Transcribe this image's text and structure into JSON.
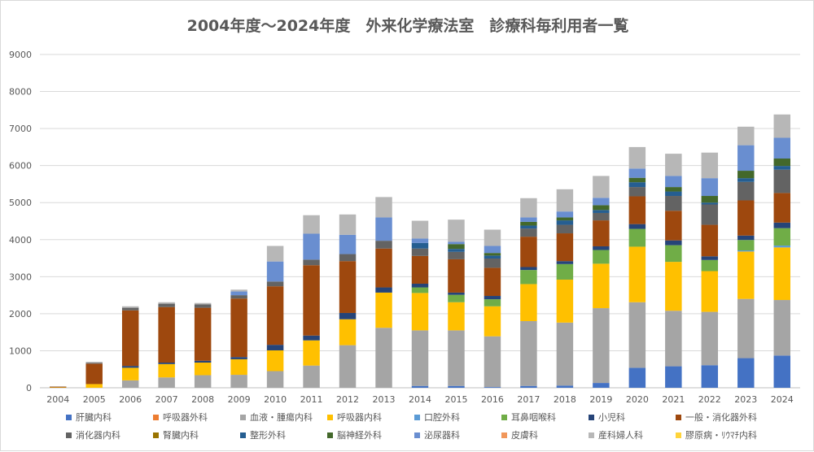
{
  "chart_data": {
    "type": "bar",
    "stacked": true,
    "title": "2004年度～2024年度　外来化学療法室　診療科毎利用者一覧",
    "xlabel": "",
    "ylabel": "",
    "ylim": [
      0,
      9000
    ],
    "yticks": [
      0,
      1000,
      2000,
      3000,
      4000,
      5000,
      6000,
      7000,
      8000,
      9000
    ],
    "grid": true,
    "legend_position": "bottom",
    "categories": [
      "2004",
      "2005",
      "2006",
      "2007",
      "2008",
      "2009",
      "2010",
      "2011",
      "2012",
      "2013",
      "2014",
      "2015",
      "2016",
      "2017",
      "2018",
      "2019",
      "2020",
      "2021",
      "2022",
      "2023",
      "2024"
    ],
    "series": [
      {
        "name": "肝臓内科",
        "color": "#4472c4",
        "values": [
          0,
          0,
          0,
          0,
          0,
          0,
          0,
          0,
          0,
          0,
          50,
          50,
          20,
          50,
          60,
          130,
          540,
          580,
          610,
          800,
          870
        ]
      },
      {
        "name": "呼吸器外科",
        "color": "#ed7d31",
        "values": [
          0,
          0,
          0,
          0,
          0,
          0,
          0,
          0,
          0,
          0,
          0,
          0,
          0,
          0,
          0,
          0,
          0,
          0,
          0,
          0,
          0
        ]
      },
      {
        "name": "血液・腫瘍内科",
        "color": "#a5a5a5",
        "values": [
          0,
          0,
          200,
          280,
          340,
          350,
          450,
          600,
          1150,
          1620,
          1500,
          1500,
          1370,
          1750,
          1700,
          2020,
          1770,
          1500,
          1440,
          1600,
          1500
        ]
      },
      {
        "name": "呼吸器内科",
        "color": "#ffc000",
        "values": [
          10,
          100,
          340,
          360,
          340,
          420,
          560,
          680,
          700,
          950,
          1010,
          760,
          810,
          1000,
          1160,
          1200,
          1500,
          1320,
          1100,
          1280,
          1420
        ]
      },
      {
        "name": "口腔外科",
        "color": "#5b9bd5",
        "values": [
          0,
          0,
          0,
          0,
          0,
          0,
          0,
          0,
          0,
          0,
          0,
          0,
          0,
          0,
          0,
          0,
          0,
          0,
          0,
          30,
          50
        ]
      },
      {
        "name": "耳鼻咽喉科",
        "color": "#70ad47",
        "values": [
          0,
          0,
          0,
          0,
          0,
          0,
          0,
          0,
          0,
          0,
          150,
          200,
          190,
          380,
          420,
          370,
          480,
          450,
          300,
          280,
          470
        ]
      },
      {
        "name": "小児科",
        "color": "#264478",
        "values": [
          0,
          0,
          50,
          40,
          50,
          60,
          150,
          130,
          170,
          140,
          100,
          60,
          90,
          80,
          80,
          100,
          130,
          130,
          100,
          120,
          150
        ]
      },
      {
        "name": "一般・消化器外科",
        "color": "#9e480e",
        "values": [
          20,
          550,
          1500,
          1500,
          1430,
          1580,
          1580,
          1900,
          1400,
          1050,
          750,
          900,
          760,
          820,
          750,
          700,
          750,
          800,
          850,
          950,
          800
        ]
      },
      {
        "name": "消化器内科",
        "color": "#636363",
        "values": [
          0,
          20,
          70,
          90,
          90,
          90,
          130,
          150,
          190,
          210,
          200,
          200,
          250,
          220,
          230,
          200,
          250,
          400,
          550,
          500,
          630
        ]
      },
      {
        "name": "腎臓内科",
        "color": "#997300",
        "values": [
          0,
          0,
          0,
          0,
          0,
          0,
          0,
          0,
          0,
          0,
          0,
          0,
          0,
          0,
          0,
          0,
          0,
          0,
          0,
          0,
          0
        ]
      },
      {
        "name": "整形外科",
        "color": "#255e91",
        "values": [
          0,
          0,
          0,
          0,
          0,
          0,
          0,
          0,
          0,
          0,
          150,
          80,
          80,
          80,
          120,
          80,
          130,
          120,
          50,
          100,
          100
        ]
      },
      {
        "name": "脳神経外科",
        "color": "#43682b",
        "values": [
          0,
          0,
          0,
          0,
          0,
          0,
          0,
          0,
          0,
          0,
          0,
          130,
          70,
          100,
          80,
          130,
          120,
          120,
          180,
          200,
          200
        ]
      },
      {
        "name": "泌尿器科",
        "color": "#698ed0",
        "values": [
          0,
          0,
          0,
          0,
          0,
          100,
          540,
          700,
          520,
          630,
          120,
          60,
          190,
          120,
          160,
          200,
          250,
          300,
          480,
          690,
          560
        ]
      },
      {
        "name": "皮膚科",
        "color": "#f1975a",
        "values": [
          0,
          0,
          0,
          0,
          0,
          0,
          0,
          0,
          0,
          0,
          0,
          0,
          0,
          0,
          0,
          0,
          0,
          0,
          0,
          0,
          0
        ]
      },
      {
        "name": "産科婦人科",
        "color": "#b7b7b7",
        "values": [
          10,
          30,
          40,
          40,
          40,
          50,
          420,
          500,
          550,
          550,
          480,
          600,
          440,
          520,
          600,
          590,
          580,
          600,
          690,
          500,
          630
        ]
      },
      {
        "name": "膠原病・ﾘｳﾏﾁ内科",
        "color": "#ffd43b",
        "values": [
          0,
          0,
          0,
          0,
          0,
          0,
          0,
          0,
          0,
          0,
          0,
          0,
          0,
          0,
          0,
          0,
          0,
          0,
          0,
          0,
          0
        ]
      }
    ]
  }
}
